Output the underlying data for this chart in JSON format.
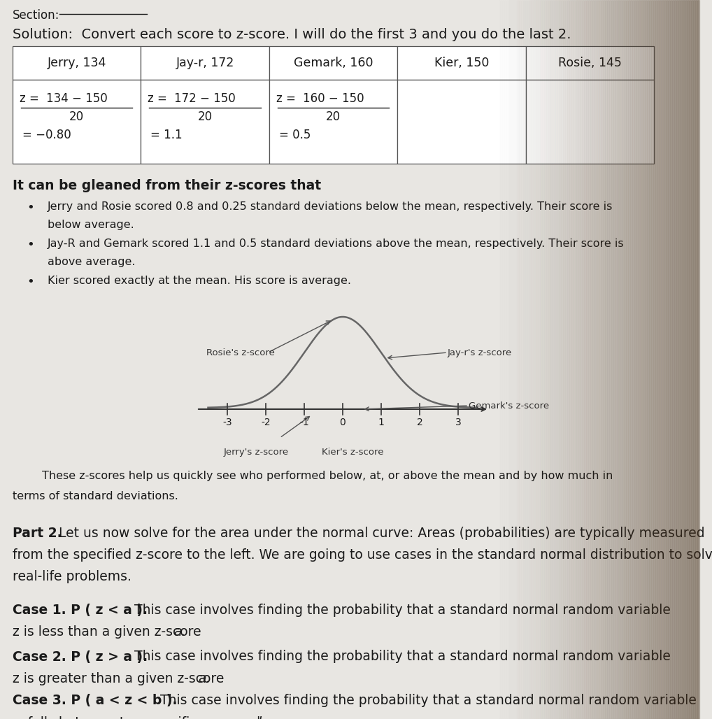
{
  "bg_color": "#e8e6e2",
  "page_color": "#e8e6e2",
  "text_color": "#1a1a1a",
  "table_headers": [
    "Jerry, 134",
    "Jay-r, 172",
    "Gemark, 160",
    "Kier, 150",
    "Rosie, 145"
  ],
  "bold_intro": "It can be gleaned from their z-scores that",
  "bullet1": "Jerry and Rosie scored 0.8 and 0.25 standard deviations below the mean, respectively. Their score is below average.",
  "bullet2": "Jay-R and Gemark scored 1.1 and 0.5 standard deviations above the mean, respectively. Their score is above average.",
  "bullet3": "Kier scored exactly at the mean. His score is average.",
  "paragraph": "        These z-scores help us quickly see who performed below, at, or above the mean and by how much in terms of standard deviations.",
  "part2_bold": "Part 2.",
  "part2_rest": " Let us now solve for the area under the normal curve: Areas (probabilities) are typically measured from the specified z-score to the left. We are going to use cases in the standard normal distribution to solve real-life problems.",
  "case1_bold": "Case 1. P ( z < a ).",
  "case1_rest": " This case involves finding the probability that a standard normal random variable z is less than a given z-score a.",
  "case2_bold": "Case 2. P ( z > a ).",
  "case2_rest": " This case involves finding the probability that a standard normal random variable z is greater than a given z-score a.",
  "case3_bold": "Case 3. P ( a < z < b ).",
  "case3_rest": " This case involves finding the probability that a standard normal random variable z  falls between two specific z-scores a and b.",
  "rosie_label": "Rosie's z-score",
  "jayr_label": "Jay-r's z-score",
  "jerry_label": "Jerry's z-score",
  "kier_label": "Kier's z-score",
  "gemark_label": "Gemark's z-score"
}
